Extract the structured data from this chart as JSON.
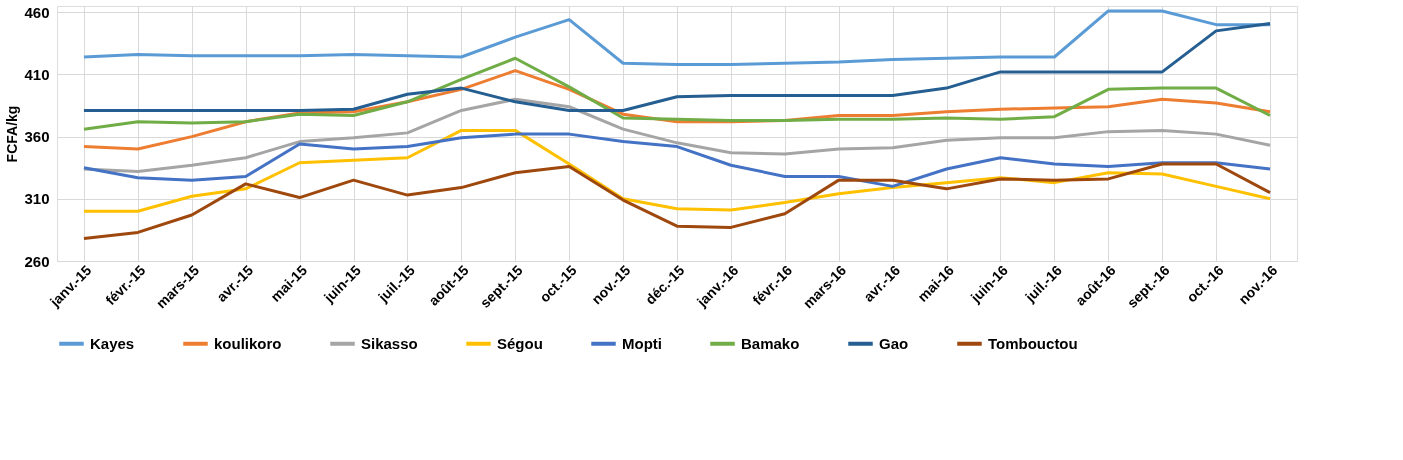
{
  "chart_data": {
    "type": "line",
    "ylabel": "FCFA/kg",
    "categories": [
      "janv.-15",
      "févr.-15",
      "mars-15",
      "avr.-15",
      "mai-15",
      "juin-15",
      "juil.-15",
      "août-15",
      "sept.-15",
      "oct.-15",
      "nov.-15",
      "déc.-15",
      "janv.-16",
      "févr.-16",
      "mars-16",
      "avr.-16",
      "mai-16",
      "juin-16",
      "juil.-16",
      "août-16",
      "sept.-16",
      "oct.-16",
      "nov.-16"
    ],
    "series": [
      {
        "name": "Kayes",
        "color": "#5b9bd5",
        "values": [
          424,
          426,
          425,
          425,
          425,
          426,
          425,
          424,
          440,
          454,
          419,
          418,
          418,
          419,
          420,
          422,
          423,
          424,
          424,
          461,
          461,
          450,
          450
        ]
      },
      {
        "name": "koulikoro",
        "color": "#ed7d31",
        "values": [
          352,
          350,
          360,
          372,
          379,
          380,
          388,
          398,
          413,
          398,
          378,
          372,
          372,
          373,
          377,
          377,
          380,
          382,
          383,
          384,
          390,
          387,
          380
        ]
      },
      {
        "name": "Sikasso",
        "color": "#a5a5a5",
        "values": [
          334,
          332,
          337,
          343,
          356,
          359,
          363,
          381,
          390,
          384,
          366,
          355,
          347,
          346,
          350,
          351,
          357,
          359,
          359,
          364,
          365,
          362,
          353
        ]
      },
      {
        "name": "Ségou",
        "color": "#ffc000",
        "values": [
          300,
          300,
          312,
          318,
          339,
          341,
          343,
          365,
          365,
          338,
          310,
          302,
          301,
          307,
          314,
          319,
          323,
          327,
          323,
          331,
          330,
          320,
          310
        ]
      },
      {
        "name": "Mopti",
        "color": "#4472c4",
        "values": [
          335,
          327,
          325,
          328,
          354,
          350,
          352,
          359,
          362,
          362,
          356,
          352,
          337,
          328,
          328,
          320,
          334,
          343,
          338,
          336,
          339,
          339,
          334
        ]
      },
      {
        "name": "Bamako",
        "color": "#70ad47",
        "values": [
          366,
          372,
          371,
          372,
          378,
          377,
          388,
          406,
          423,
          400,
          375,
          374,
          373,
          373,
          374,
          374,
          375,
          374,
          376,
          398,
          399,
          399,
          377
        ]
      },
      {
        "name": "Gao",
        "color": "#255e91",
        "values": [
          381,
          381,
          381,
          381,
          381,
          382,
          394,
          399,
          388,
          381,
          381,
          392,
          393,
          393,
          393,
          393,
          399,
          412,
          412,
          412,
          412,
          445,
          451
        ]
      },
      {
        "name": "Tombouctou",
        "color": "#9e480e",
        "values": [
          278,
          283,
          297,
          322,
          311,
          325,
          313,
          319,
          331,
          336,
          309,
          288,
          287,
          298,
          325,
          325,
          318,
          326,
          325,
          326,
          338,
          338,
          315
        ]
      }
    ],
    "ylim": [
      260,
      465
    ],
    "yticks": [
      260,
      310,
      360,
      410,
      460
    ],
    "grid": true,
    "legend": "bottom",
    "marker": "none",
    "line_style": "solid"
  }
}
